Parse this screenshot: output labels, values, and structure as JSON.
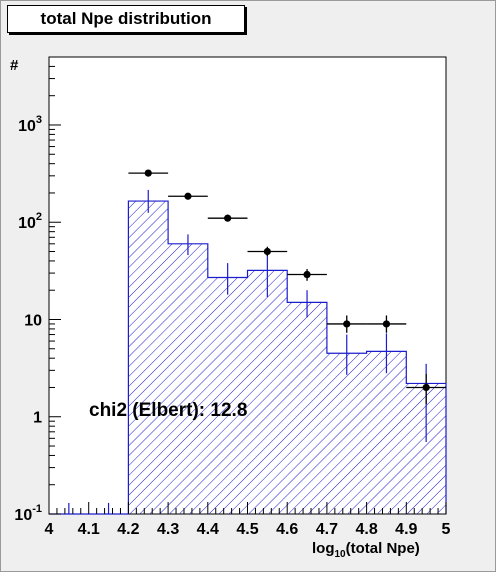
{
  "title": "total Npe distribution",
  "colors": {
    "histogram": "#1c1ccf",
    "hatch": "#1c1ccf",
    "data": "#000000",
    "frame_bg": "#ffffff",
    "canvas_bg": "#efefef"
  },
  "chart_data": {
    "type": "histogram",
    "title": "total Npe distribution",
    "xlabel": "log10(total Npe)",
    "ylabel": "#",
    "xlim": [
      4,
      5
    ],
    "ylim": [
      0.1,
      5000
    ],
    "yscale": "log",
    "grid": false,
    "x_ticks": [
      "4",
      "4.1",
      "4.2",
      "4.3",
      "4.4",
      "4.5",
      "4.6",
      "4.7",
      "4.8",
      "4.9",
      "5"
    ],
    "y_ticks": [
      {
        "value": 0.1,
        "base": "10",
        "exp": "-1"
      },
      {
        "value": 1,
        "base": "1",
        "exp": ""
      },
      {
        "value": 10,
        "base": "10",
        "exp": ""
      },
      {
        "value": 100,
        "base": "10",
        "exp": "2"
      },
      {
        "value": 1000,
        "base": "10",
        "exp": "3"
      }
    ],
    "simulation": {
      "style": "hatched histogram with error bars",
      "bin_edges": [
        4.0,
        4.1,
        4.2,
        4.3,
        4.4,
        4.5,
        4.6,
        4.7,
        4.8,
        4.9,
        5.0
      ],
      "values": [
        0.1,
        0.1,
        165,
        60,
        27,
        32,
        15,
        4.5,
        4.7,
        2.2
      ],
      "err_low": [
        0.1,
        0.1,
        125,
        46,
        18,
        17,
        10.5,
        2.7,
        2.8,
        0.55
      ],
      "err_high": [
        0.13,
        0.13,
        215,
        75,
        38,
        47,
        20,
        7.0,
        7.2,
        3.5
      ]
    },
    "data": {
      "style": "points with error bars",
      "x": [
        4.25,
        4.35,
        4.45,
        4.55,
        4.65,
        4.75,
        4.85,
        4.95
      ],
      "y": [
        320,
        185,
        110,
        50,
        29,
        9,
        9,
        2
      ],
      "err_low": [
        305,
        175,
        102,
        45,
        25,
        7.3,
        7.3,
        1.35
      ],
      "err_high": [
        338,
        198,
        120,
        56,
        33,
        11,
        11,
        2.75
      ]
    },
    "annotation": "chi2 (Elbert): 12.8"
  }
}
